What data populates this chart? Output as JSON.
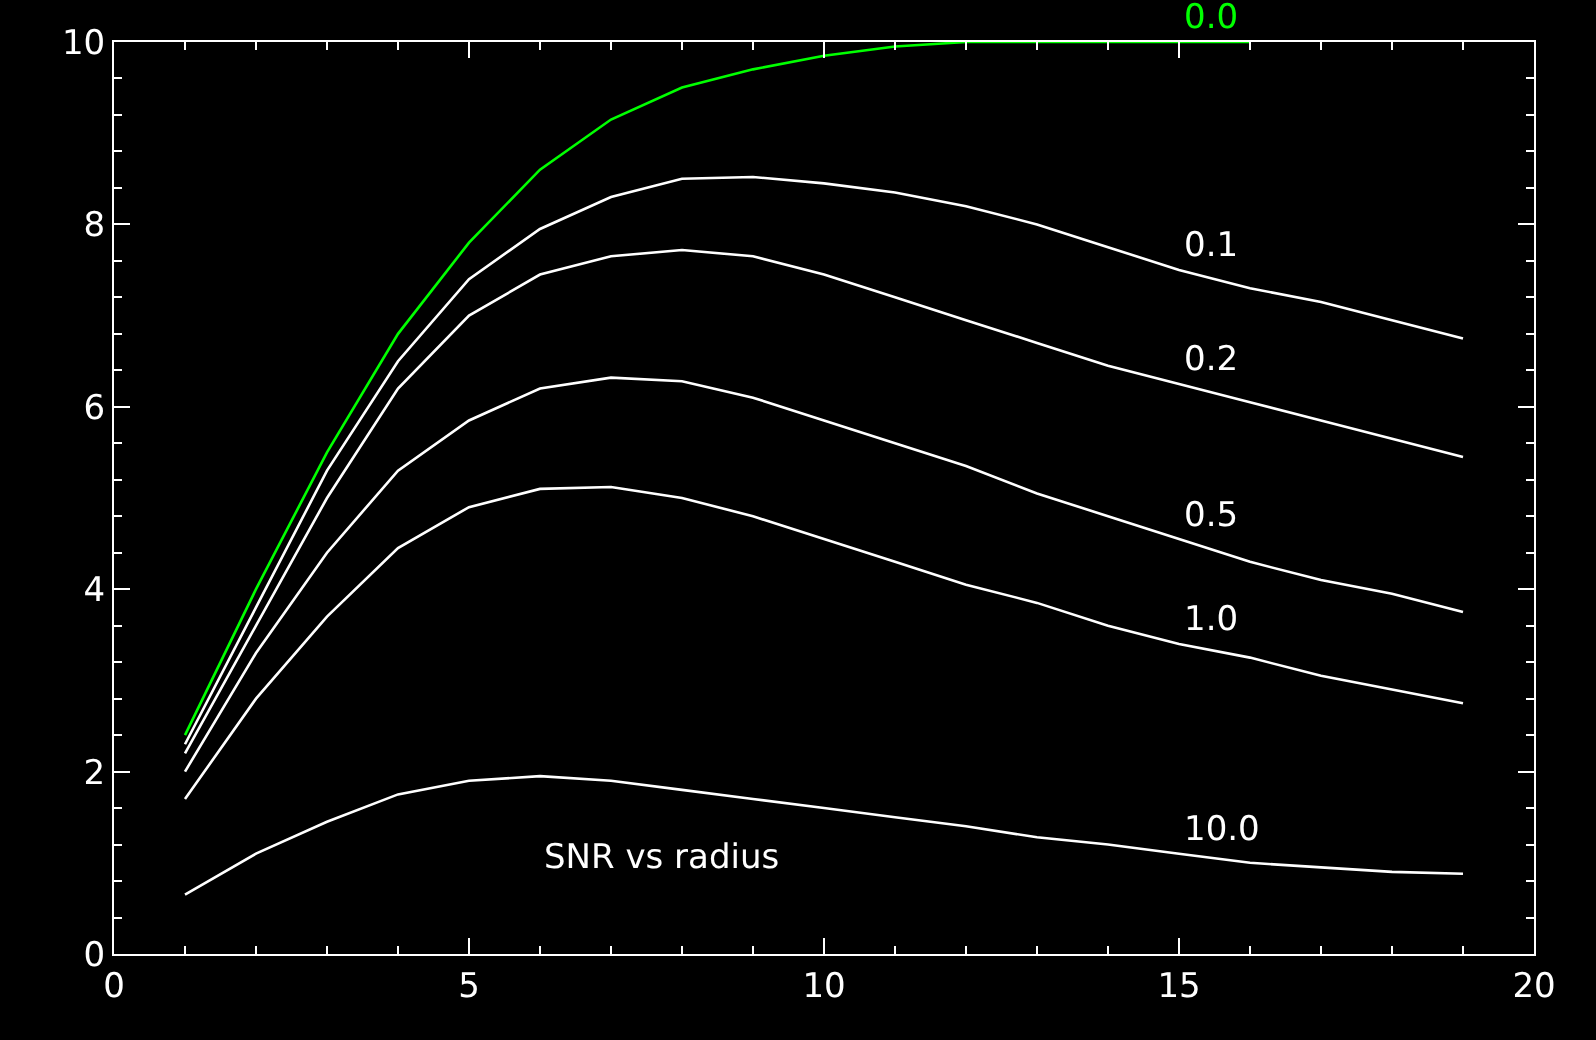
{
  "chart_data": {
    "type": "line",
    "x": [
      1,
      2,
      3,
      4,
      5,
      6,
      7,
      8,
      9,
      10,
      11,
      12,
      13,
      14,
      15,
      16,
      17,
      18,
      19
    ],
    "xlim": [
      0,
      20
    ],
    "xticks": [
      0,
      5,
      10,
      15,
      20
    ],
    "ylim": [
      0,
      10
    ],
    "yticks": [
      0,
      2,
      4,
      6,
      8,
      10
    ],
    "grid": false,
    "legend": false,
    "marker": "none",
    "line_style": "solid",
    "annotations": [
      "SNR vs radius"
    ],
    "series": [
      {
        "name": "0.0",
        "color": "#00ff00",
        "x": [
          1,
          2,
          3,
          4,
          5,
          6,
          7,
          8,
          9,
          10,
          11,
          12,
          13,
          14,
          15,
          16
        ],
        "values": [
          2.4,
          4.0,
          5.5,
          6.8,
          7.8,
          8.6,
          9.15,
          9.5,
          9.7,
          9.85,
          9.95,
          10.0,
          10.0,
          10.0,
          10.0,
          10.0
        ]
      },
      {
        "name": "0.1",
        "color": "#ffffff",
        "values": [
          2.3,
          3.8,
          5.3,
          6.5,
          7.4,
          7.95,
          8.3,
          8.5,
          8.52,
          8.45,
          8.35,
          8.2,
          8.0,
          7.75,
          7.5,
          7.3,
          7.15,
          6.95,
          6.75
        ]
      },
      {
        "name": "0.2",
        "color": "#ffffff",
        "values": [
          2.2,
          3.6,
          5.0,
          6.2,
          7.0,
          7.45,
          7.65,
          7.72,
          7.65,
          7.45,
          7.2,
          6.95,
          6.7,
          6.45,
          6.25,
          6.05,
          5.85,
          5.65,
          5.45
        ]
      },
      {
        "name": "0.5",
        "color": "#ffffff",
        "values": [
          2.0,
          3.3,
          4.4,
          5.3,
          5.85,
          6.2,
          6.32,
          6.28,
          6.1,
          5.85,
          5.6,
          5.35,
          5.05,
          4.8,
          4.55,
          4.3,
          4.1,
          3.95,
          3.75
        ]
      },
      {
        "name": "1.0",
        "color": "#ffffff",
        "values": [
          1.7,
          2.8,
          3.7,
          4.45,
          4.9,
          5.1,
          5.12,
          5.0,
          4.8,
          4.55,
          4.3,
          4.05,
          3.85,
          3.6,
          3.4,
          3.25,
          3.05,
          2.9,
          2.75
        ]
      },
      {
        "name": "10.0",
        "color": "#ffffff",
        "values": [
          0.65,
          1.1,
          1.45,
          1.75,
          1.9,
          1.95,
          1.9,
          1.8,
          1.7,
          1.6,
          1.5,
          1.4,
          1.28,
          1.2,
          1.1,
          1.0,
          0.95,
          0.9,
          0.88
        ]
      }
    ]
  }
}
